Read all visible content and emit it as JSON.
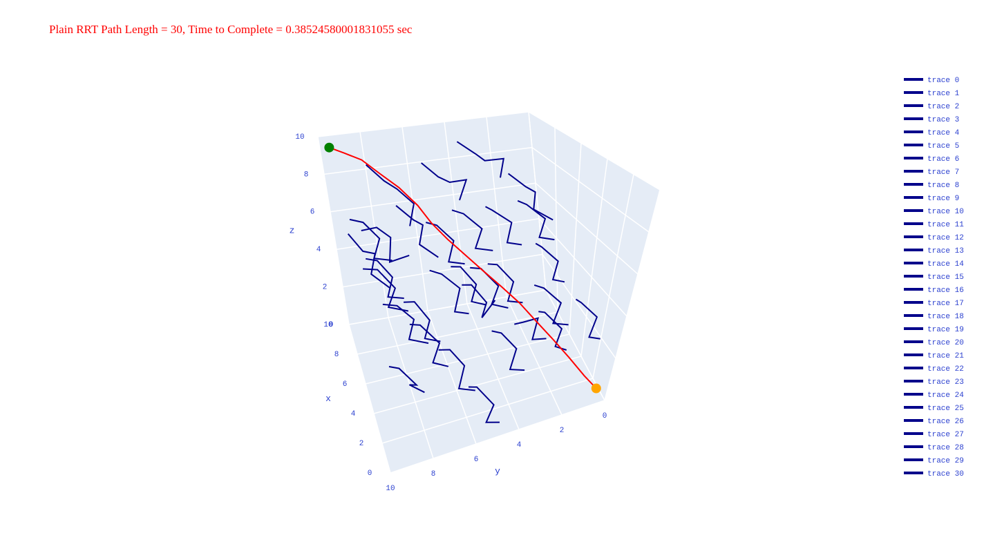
{
  "chart_data": {
    "type": "scatter3d",
    "title": "Plain RRT Path Length = 30, Time to Complete = 0.38524580001831055 sec",
    "xaxis_title": "x",
    "yaxis_title": "y",
    "zaxis_title": "z",
    "xlim": [
      0,
      10
    ],
    "ylim": [
      0,
      10
    ],
    "zlim": [
      0,
      10
    ],
    "xticks": [
      0,
      2,
      4,
      6,
      8,
      10
    ],
    "yticks": [
      0,
      2,
      4,
      6,
      8,
      10
    ],
    "zticks": [
      0,
      2,
      4,
      6,
      8,
      10
    ],
    "grid": true,
    "legend": "right",
    "series": [
      {
        "name": "trace 0",
        "color": "#00008b",
        "x": [
          9.2,
          8.6,
          8.9,
          8.1,
          7.6
        ],
        "y": [
          8.1,
          7.5,
          6.9,
          6.4,
          6.8
        ],
        "z": [
          8.7,
          8.1,
          7.4,
          7.0,
          6.2
        ]
      },
      {
        "name": "trace 1",
        "color": "#00008b",
        "x": [
          7.4,
          6.8,
          7.1,
          6.3,
          5.9
        ],
        "y": [
          9.0,
          8.4,
          7.8,
          8.1,
          7.3
        ],
        "z": [
          6.5,
          6.9,
          6.1,
          5.4,
          5.8
        ]
      },
      {
        "name": "trace 2",
        "color": "#00008b",
        "x": [
          5.1,
          5.7,
          5.2,
          4.6,
          4.9
        ],
        "y": [
          8.8,
          8.1,
          7.5,
          7.9,
          7.0
        ],
        "z": [
          4.2,
          3.6,
          3.1,
          2.6,
          2.0
        ]
      },
      {
        "name": "trace 3",
        "color": "#00008b",
        "x": [
          3.2,
          3.8,
          3.1,
          2.5,
          2.9
        ],
        "y": [
          9.1,
          8.6,
          8.0,
          8.4,
          7.7
        ],
        "z": [
          2.5,
          1.9,
          1.4,
          1.9,
          1.1
        ]
      },
      {
        "name": "trace 4",
        "color": "#00008b",
        "x": [
          8.0,
          7.4,
          7.8,
          7.1,
          6.6
        ],
        "y": [
          5.9,
          5.4,
          4.8,
          4.3,
          4.8
        ],
        "z": [
          9.1,
          8.6,
          8.0,
          8.4,
          7.7
        ]
      },
      {
        "name": "trace 5",
        "color": "#00008b",
        "x": [
          6.2,
          6.8,
          6.1,
          5.6,
          6.0
        ],
        "y": [
          6.4,
          5.8,
          5.3,
          5.7,
          4.9
        ],
        "z": [
          7.1,
          6.5,
          6.0,
          5.3,
          4.8
        ]
      },
      {
        "name": "trace 6",
        "color": "#00008b",
        "x": [
          4.4,
          4.9,
          4.3,
          3.7,
          4.1
        ],
        "y": [
          6.8,
          6.2,
          5.6,
          6.0,
          5.3
        ],
        "z": [
          5.8,
          5.2,
          4.7,
          4.0,
          3.5
        ]
      },
      {
        "name": "trace 7",
        "color": "#00008b",
        "x": [
          2.1,
          2.7,
          2.2,
          1.6,
          1.9
        ],
        "y": [
          7.1,
          6.5,
          6.0,
          6.4,
          5.6
        ],
        "z": [
          3.4,
          2.9,
          2.3,
          1.7,
          1.2
        ]
      },
      {
        "name": "trace 8",
        "color": "#00008b",
        "x": [
          9.0,
          8.4,
          8.8,
          8.2,
          7.7
        ],
        "y": [
          3.9,
          3.3,
          2.8,
          2.2,
          2.6
        ],
        "z": [
          9.4,
          8.9,
          8.3,
          8.6,
          7.9
        ]
      },
      {
        "name": "trace 9",
        "color": "#00008b",
        "x": [
          7.2,
          7.8,
          7.1,
          6.6,
          7.0
        ],
        "y": [
          3.5,
          3.0,
          2.4,
          2.8,
          2.0
        ],
        "z": [
          6.8,
          6.2,
          5.8,
          5.1,
          4.6
        ]
      },
      {
        "name": "trace 10",
        "color": "#00008b",
        "x": [
          5.3,
          5.9,
          5.2,
          4.7,
          5.1
        ],
        "y": [
          4.1,
          3.5,
          3.0,
          3.4,
          2.6
        ],
        "z": [
          5.0,
          4.5,
          3.9,
          3.3,
          2.8
        ]
      },
      {
        "name": "trace 11",
        "color": "#00008b",
        "x": [
          3.0,
          3.6,
          2.9,
          2.4,
          2.8
        ],
        "y": [
          4.6,
          4.0,
          3.5,
          3.9,
          3.1
        ],
        "z": [
          3.1,
          2.5,
          2.0,
          1.4,
          0.9
        ]
      },
      {
        "name": "trace 12",
        "color": "#00008b",
        "x": [
          8.5,
          7.9,
          8.3,
          7.6,
          7.2
        ],
        "y": [
          1.9,
          1.4,
          0.8,
          1.2,
          0.5
        ],
        "z": [
          7.6,
          7.1,
          6.5,
          6.0,
          5.5
        ]
      },
      {
        "name": "trace 13",
        "color": "#00008b",
        "x": [
          6.4,
          7.0,
          6.3,
          5.8,
          6.2
        ],
        "y": [
          1.6,
          1.1,
          0.6,
          1.0,
          0.3
        ],
        "z": [
          4.9,
          4.3,
          3.8,
          3.2,
          2.7
        ]
      },
      {
        "name": "trace 14",
        "color": "#00008b",
        "x": [
          4.1,
          4.7,
          4.0,
          3.5,
          3.9
        ],
        "y": [
          2.2,
          1.7,
          1.1,
          1.5,
          0.8
        ],
        "z": [
          2.8,
          2.3,
          1.7,
          1.2,
          0.6
        ]
      },
      {
        "name": "trace 15",
        "color": "#00008b",
        "x": [
          9.6,
          9.0,
          9.4,
          8.8,
          8.3
        ],
        "y": [
          6.9,
          6.3,
          5.8,
          6.2,
          5.5
        ],
        "z": [
          6.1,
          5.6,
          5.0,
          4.4,
          3.9
        ]
      },
      {
        "name": "trace 16",
        "color": "#00008b",
        "x": [
          8.1,
          8.7,
          8.0,
          7.5,
          7.9
        ],
        "y": [
          8.9,
          8.3,
          7.8,
          8.2,
          7.4
        ],
        "z": [
          4.6,
          4.0,
          3.5,
          2.9,
          2.4
        ]
      },
      {
        "name": "trace 17",
        "color": "#00008b",
        "x": [
          6.9,
          7.5,
          6.8,
          6.3,
          6.7
        ],
        "y": [
          7.6,
          7.0,
          6.5,
          6.9,
          6.1
        ],
        "z": [
          2.9,
          2.4,
          1.8,
          1.3,
          0.7
        ]
      },
      {
        "name": "trace 18",
        "color": "#00008b",
        "x": [
          1.4,
          2.0,
          1.3,
          0.8,
          1.2
        ],
        "y": [
          8.3,
          7.8,
          7.2,
          7.6,
          6.9
        ],
        "z": [
          5.3,
          4.8,
          4.2,
          3.7,
          3.1
        ]
      },
      {
        "name": "trace 19",
        "color": "#00008b",
        "x": [
          2.6,
          3.2,
          2.5,
          2.0,
          2.4
        ],
        "y": [
          5.6,
          5.0,
          4.5,
          4.9,
          4.1
        ],
        "z": [
          6.6,
          6.1,
          5.5,
          5.0,
          4.4
        ]
      },
      {
        "name": "trace 20",
        "color": "#00008b",
        "x": [
          0.9,
          1.5,
          0.8,
          0.3,
          0.7
        ],
        "y": [
          3.6,
          3.0,
          2.5,
          2.9,
          2.1
        ],
        "z": [
          6.1,
          5.5,
          5.0,
          4.4,
          3.9
        ]
      },
      {
        "name": "trace 21",
        "color": "#00008b",
        "x": [
          1.8,
          2.4,
          1.7,
          1.2,
          1.6
        ],
        "y": [
          1.5,
          1.0,
          0.5,
          0.9,
          0.2
        ],
        "z": [
          4.4,
          3.8,
          3.3,
          2.7,
          2.2
        ]
      },
      {
        "name": "trace 22",
        "color": "#00008b",
        "x": [
          9.3,
          8.7,
          9.1,
          8.5,
          8.0
        ],
        "y": [
          9.4,
          8.9,
          8.3,
          8.7,
          8.0
        ],
        "z": [
          5.2,
          4.6,
          4.1,
          3.5,
          3.0
        ]
      },
      {
        "name": "trace 23",
        "color": "#00008b",
        "x": [
          7.7,
          8.3,
          7.6,
          7.1,
          7.5
        ],
        "y": [
          5.1,
          4.5,
          4.0,
          4.4,
          3.6
        ],
        "z": [
          3.7,
          3.2,
          2.6,
          2.1,
          1.5
        ]
      },
      {
        "name": "trace 24",
        "color": "#00008b",
        "x": [
          5.8,
          6.4,
          5.7,
          5.2,
          5.6
        ],
        "y": [
          9.6,
          9.0,
          8.5,
          8.9,
          8.1
        ],
        "z": [
          8.1,
          7.5,
          7.0,
          6.4,
          5.9
        ]
      },
      {
        "name": "trace 25",
        "color": "#00008b",
        "x": [
          4.6,
          5.2,
          4.5,
          4.0,
          4.4
        ],
        "y": [
          3.1,
          2.5,
          2.0,
          2.4,
          1.6
        ],
        "z": [
          8.3,
          7.7,
          7.2,
          6.6,
          6.1
        ]
      },
      {
        "name": "trace 26",
        "color": "#00008b",
        "x": [
          3.5,
          4.1,
          3.4,
          2.9,
          3.3
        ],
        "y": [
          6.0,
          5.4,
          4.9,
          5.3,
          4.5
        ],
        "z": [
          9.0,
          8.4,
          7.9,
          7.3,
          6.8
        ]
      },
      {
        "name": "trace 27",
        "color": "#00008b",
        "x": [
          0.6,
          1.2,
          0.5,
          0.2,
          0.5
        ],
        "y": [
          6.2,
          5.7,
          5.1,
          5.5,
          4.8
        ],
        "z": [
          2.3,
          1.8,
          1.2,
          0.7,
          0.3
        ]
      },
      {
        "name": "trace 28",
        "color": "#00008b",
        "x": [
          8.8,
          9.4,
          8.7,
          8.2,
          8.6
        ],
        "y": [
          4.4,
          3.8,
          3.3,
          3.7,
          2.9
        ],
        "z": [
          1.9,
          1.4,
          0.8,
          0.4,
          0.9
        ]
      },
      {
        "name": "trace 29",
        "color": "#00008b",
        "x": [
          2.3,
          2.9,
          2.2,
          1.7,
          2.1
        ],
        "y": [
          9.7,
          9.1,
          8.6,
          9.0,
          8.2
        ],
        "z": [
          7.7,
          7.2,
          6.6,
          6.1,
          5.5
        ]
      },
      {
        "name": "trace 30",
        "color": "#00008b",
        "x": [
          6.0,
          6.6,
          5.9,
          5.4,
          5.8
        ],
        "y": [
          2.7,
          2.1,
          1.6,
          2.0,
          1.2
        ],
        "z": [
          1.2,
          0.8,
          1.3,
          0.6,
          0.2
        ]
      }
    ],
    "path": {
      "color": "red",
      "start_color": "green",
      "goal_color": "orange",
      "x": [
        9.6,
        9.3,
        9.0,
        8.5,
        8.0,
        7.4,
        6.9,
        6.3,
        5.7,
        5.0,
        4.4,
        3.7,
        3.0,
        2.3,
        1.6,
        0.9,
        0.4
      ],
      "y": [
        9.6,
        9.0,
        8.3,
        7.7,
        7.0,
        6.4,
        6.0,
        5.5,
        5.0,
        4.4,
        3.8,
        3.2,
        2.7,
        2.1,
        1.5,
        0.9,
        0.4
      ],
      "z": [
        9.6,
        9.4,
        9.1,
        8.6,
        8.0,
        7.3,
        6.6,
        6.0,
        5.5,
        4.9,
        4.3,
        3.7,
        3.1,
        2.4,
        1.7,
        1.0,
        0.5
      ]
    }
  }
}
